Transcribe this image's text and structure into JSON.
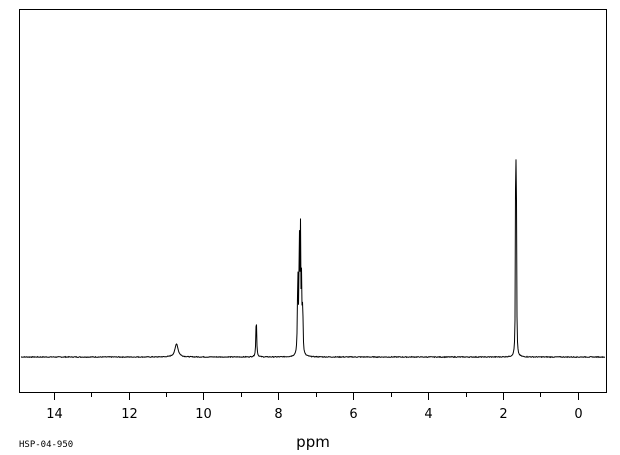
{
  "chart_data": {
    "type": "line",
    "title": "",
    "xlabel": "ppm",
    "ylabel": "",
    "x_reversed": true,
    "xlim": [
      14.9,
      -0.75
    ],
    "ylim": [
      0,
      100
    ],
    "grid": false,
    "legend": "none",
    "line_color": "#000000",
    "major_ticks": [
      14,
      12,
      10,
      8,
      6,
      4,
      2,
      0
    ],
    "tick_labels": [
      "14",
      "12",
      "10",
      "8",
      "6",
      "4",
      "2",
      "0"
    ],
    "minor_ticks": [
      13,
      11,
      9,
      7,
      5,
      3,
      1
    ],
    "peaks": [
      {
        "ppm": 10.72,
        "intensity": 4.2,
        "width": 0.05
      },
      {
        "ppm": 8.59,
        "intensity": 13.0,
        "width": 0.012
      },
      {
        "ppm": 7.48,
        "intensity": 26.0,
        "width": 0.012
      },
      {
        "ppm": 7.44,
        "intensity": 39.0,
        "width": 0.01
      },
      {
        "ppm": 7.41,
        "intensity": 37.0,
        "width": 0.01
      },
      {
        "ppm": 7.38,
        "intensity": 22.0,
        "width": 0.01
      },
      {
        "ppm": 7.35,
        "intensity": 16.0,
        "width": 0.01
      },
      {
        "ppm": 1.66,
        "intensity": 100.0,
        "width": 0.007
      },
      {
        "ppm": 1.64,
        "intensity": 38.0,
        "width": 0.007
      }
    ],
    "baseline": 0.0,
    "noise": 0.25
  },
  "footer": {
    "sample_id": "HSP-04-950"
  }
}
